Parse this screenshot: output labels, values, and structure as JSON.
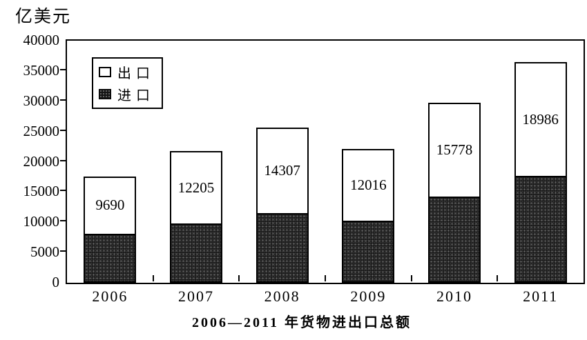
{
  "unit_label": "亿美元",
  "title": "2006—2011 年货物进出口总额",
  "legend": {
    "export_label": "出口",
    "import_label": "进口"
  },
  "chart_data": {
    "type": "bar",
    "stacked": true,
    "title": "2006—2011 年货物进出口总额",
    "ylabel": "亿美元",
    "xlabel": "",
    "ylim": [
      0,
      40000
    ],
    "ytick_step": 5000,
    "grid": false,
    "legend_position": "upper-left",
    "categories": [
      "2006",
      "2007",
      "2008",
      "2009",
      "2010",
      "2011"
    ],
    "series": [
      {
        "name": "出口",
        "color": "#ffffff",
        "values": [
          9690,
          12205,
          14307,
          12016,
          15778,
          18986
        ],
        "labels_shown_on_bars": true
      },
      {
        "name": "进口",
        "color": "#141414",
        "values": [
          7915,
          9561,
          11326,
          10059,
          13962,
          17435
        ],
        "labels_shown_on_bars": false,
        "note": "values estimated from bar heights; labels not legible in image"
      }
    ],
    "bar_labels": [
      "9690",
      "12205",
      "14307",
      "12016",
      "15778",
      "18986"
    ]
  }
}
